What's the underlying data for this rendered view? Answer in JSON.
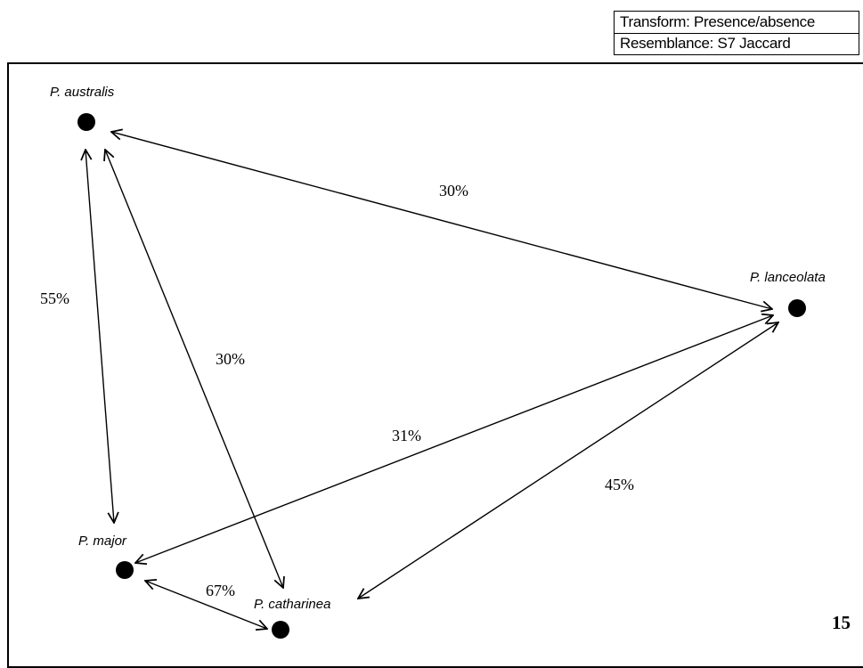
{
  "legend": {
    "transform": "Transform: Presence/absence",
    "resemblance": "Resemblance: S7 Jaccard"
  },
  "nodes": {
    "australis": "P. australis",
    "lanceolata": "P. lanceolata",
    "major": "P. major",
    "catharinea": "P. catharinea"
  },
  "edges": {
    "australis_lanceolata": "30%",
    "australis_major": "55%",
    "australis_catharinea": "30%",
    "major_lanceolata": "31%",
    "catharinea_lanceolata": "45%",
    "major_catharinea": "67%"
  },
  "page_number": "15"
}
